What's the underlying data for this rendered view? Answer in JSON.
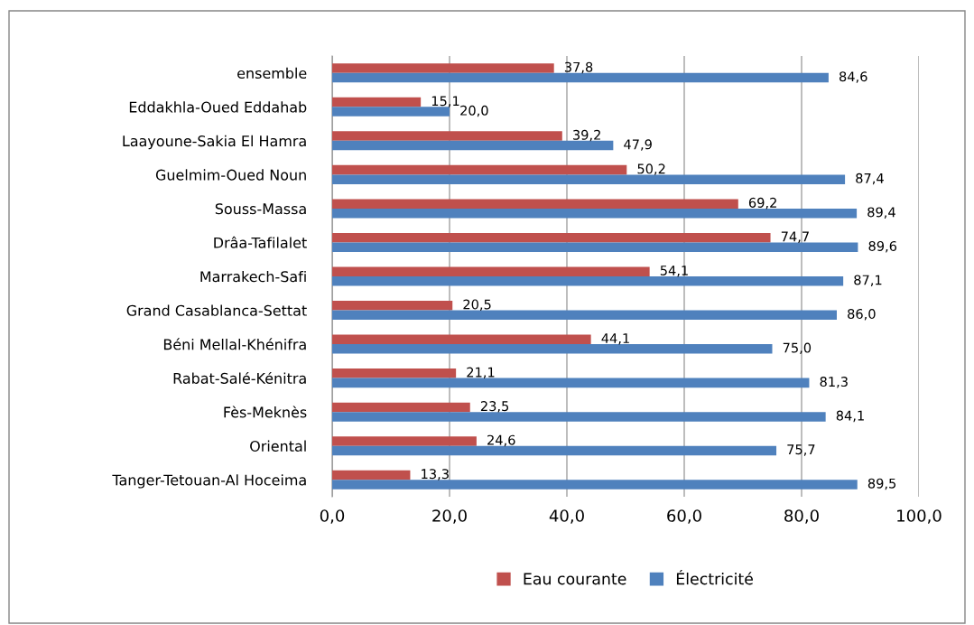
{
  "chart_data": {
    "type": "bar",
    "orientation": "horizontal",
    "categories": [
      "ensemble",
      "Eddakhla-Oued Eddahab",
      "Laayoune-Sakia El Hamra",
      "Guelmim-Oued Noun",
      "Souss-Massa",
      "Drâa-Tafilalet",
      "Marrakech-Safi",
      "Grand Casablanca-Settat",
      "Béni Mellal-Khénifra",
      "Rabat-Salé-Kénitra",
      "Fès-Meknès",
      "Oriental",
      "Tanger-Tetouan-Al Hoceima"
    ],
    "series": [
      {
        "name": "Eau courante",
        "color": "#c0504d",
        "values": [
          37.8,
          15.1,
          39.2,
          50.2,
          69.2,
          74.7,
          54.1,
          20.5,
          44.1,
          21.1,
          23.5,
          24.6,
          13.3
        ],
        "value_labels": [
          "37,8",
          "15,1",
          "39,2",
          "50,2",
          "69,2",
          "74,7",
          "54,1",
          "20,5",
          "44,1",
          "21,1",
          "23,5",
          "24,6",
          "13,3"
        ]
      },
      {
        "name": "Électricité",
        "color": "#4f81bd",
        "values": [
          84.6,
          20.0,
          47.9,
          87.4,
          89.4,
          89.6,
          87.1,
          86.0,
          75.0,
          81.3,
          84.1,
          75.7,
          89.5
        ],
        "value_labels": [
          "84,6",
          "20,0",
          "47,9",
          "87,4",
          "89,4",
          "89,6",
          "87,1",
          "86,0",
          "75,0",
          "81,3",
          "84,1",
          "75,7",
          "89,5"
        ]
      }
    ],
    "xlim": [
      0,
      100
    ],
    "xticks": [
      {
        "value": 0,
        "label": "0,0"
      },
      {
        "value": 20,
        "label": "20,0"
      },
      {
        "value": 40,
        "label": "40,0"
      },
      {
        "value": 60,
        "label": "60,0"
      },
      {
        "value": 80,
        "label": "80,0"
      },
      {
        "value": 100,
        "label": "100,0"
      }
    ],
    "grid": "x",
    "legend": "bottom"
  }
}
